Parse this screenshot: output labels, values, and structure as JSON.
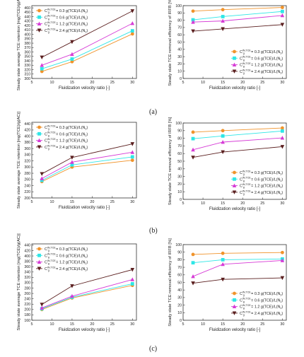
{
  "figure": {
    "panel_labels": [
      "(a)",
      "(b)",
      "(c)"
    ]
  },
  "legend": {
    "prefix": "C",
    "sup": "IN,TCE",
    "sub": "g",
    "entries": [
      " = 0.3 g(TCE)/L(N",
      " = 0.6 g(TCE)/L(N",
      " = 1.2 g(TCE)/L(N",
      " = 2.4 g(TCE)/L(N"
    ],
    "n_sub": "2",
    "close": ")"
  },
  "colors": {
    "s1": "#f0932b",
    "s2": "#2ee6e6",
    "s3": "#d63ad6",
    "s4": "#5a1e1e"
  },
  "chart_data": [
    {
      "type": "line",
      "panel": "(a)",
      "side": "left",
      "xlabel": "Fluidization velocity ratio [-]",
      "ylabel": "Steady state average TCE retention [mg(TCE)/g(AC)]",
      "x": [
        7.5,
        15,
        30
      ],
      "xticks": [
        5,
        10,
        15,
        20,
        25,
        30
      ],
      "xlim": [
        5,
        31
      ],
      "ylim": [
        300,
        465
      ],
      "yticks": [
        300,
        310,
        320,
        330,
        340,
        350,
        360,
        370,
        380,
        390,
        400,
        410,
        420,
        430,
        440,
        450,
        460
      ],
      "legend_position": "top-left",
      "series": [
        {
          "values": [
            316,
            338,
            401
          ]
        },
        {
          "values": [
            322,
            344,
            408
          ]
        },
        {
          "values": [
            330,
            355,
            425
          ]
        },
        {
          "values": [
            348,
            383,
            453
          ]
        }
      ]
    },
    {
      "type": "line",
      "panel": "(a)",
      "side": "right",
      "xlabel": "Fluidization velocity ratio [-]",
      "ylabel": "Steady state TCE removal efficiency of IRFB [%]",
      "x": [
        7.5,
        15,
        30
      ],
      "xticks": [
        5,
        10,
        15,
        20,
        25,
        30
      ],
      "xlim": [
        5,
        31
      ],
      "ylim": [
        0,
        100
      ],
      "yticks": [
        0,
        10,
        20,
        30,
        40,
        50,
        60,
        70,
        80,
        90,
        100
      ],
      "legend_position": "bottom-right",
      "series": [
        {
          "values": [
            92.5,
            94.5,
            97.5
          ]
        },
        {
          "values": [
            80.5,
            85,
            92
          ]
        },
        {
          "values": [
            77.5,
            79,
            86.5
          ]
        },
        {
          "values": [
            65,
            68,
            74
          ]
        }
      ]
    },
    {
      "type": "line",
      "panel": "(b)",
      "side": "left",
      "xlabel": "Fluidization velocity ratio [-]",
      "ylabel": "Steady state average TCE retention [mg(TCE)/g(AC)]",
      "x": [
        7.5,
        15,
        30
      ],
      "xticks": [
        5,
        10,
        15,
        20,
        25,
        30
      ],
      "xlim": [
        5,
        31
      ],
      "ylim": [
        200,
        445
      ],
      "yticks": [
        200,
        220,
        240,
        260,
        280,
        300,
        320,
        340,
        360,
        380,
        400,
        420,
        440
      ],
      "legend_position": "top-left",
      "series": [
        {
          "values": [
            253,
            300,
            322
          ]
        },
        {
          "values": [
            257,
            307,
            333
          ]
        },
        {
          "values": [
            263,
            316,
            348
          ]
        },
        {
          "values": [
            278,
            331,
            375
          ]
        }
      ]
    },
    {
      "type": "line",
      "panel": "(b)",
      "side": "right",
      "xlabel": "Fluidization velocity ratio [-]",
      "ylabel": "Steady state TCE removal efficiency of IRFB [%]",
      "x": [
        7.5,
        15,
        30
      ],
      "xticks": [
        5,
        10,
        15,
        20,
        25,
        30
      ],
      "xlim": [
        5,
        31
      ],
      "ylim": [
        0,
        100
      ],
      "yticks": [
        0,
        10,
        20,
        30,
        40,
        50,
        60,
        70,
        80,
        90,
        100
      ],
      "legend_position": "bottom-right",
      "series": [
        {
          "values": [
            88,
            90,
            93.5
          ]
        },
        {
          "values": [
            79.5,
            83,
            89.5
          ]
        },
        {
          "values": [
            65,
            75,
            80.5
          ]
        },
        {
          "values": [
            55,
            62,
            69
          ]
        }
      ]
    },
    {
      "type": "line",
      "panel": "(c)",
      "side": "left",
      "xlabel": "Fluidization velocity ratio [-]",
      "ylabel": "Steady state average TCE retention [mg(TCE)/g(AC)]",
      "x": [
        7.5,
        15,
        30
      ],
      "xticks": [
        5,
        10,
        15,
        20,
        25,
        30
      ],
      "xlim": [
        5,
        31
      ],
      "ylim": [
        160,
        445
      ],
      "yticks": [
        160,
        180,
        200,
        220,
        240,
        260,
        280,
        300,
        320,
        340,
        360,
        380,
        400,
        420,
        440
      ],
      "legend_position": "top-left",
      "series": [
        {
          "values": [
            200,
            243,
            290
          ]
        },
        {
          "values": [
            203,
            246,
            296
          ]
        },
        {
          "values": [
            206,
            250,
            312
          ]
        },
        {
          "values": [
            219,
            288,
            349
          ]
        }
      ]
    },
    {
      "type": "line",
      "panel": "(c)",
      "side": "right",
      "xlabel": "Fluidization velocity ratio [-]",
      "ylabel": "Steady state TCE removal efficiency of IRFB [%]",
      "x": [
        7.5,
        15,
        30
      ],
      "xticks": [
        5,
        10,
        15,
        20,
        25,
        30
      ],
      "xlim": [
        5,
        31
      ],
      "ylim": [
        0,
        100
      ],
      "yticks": [
        0,
        10,
        20,
        30,
        40,
        50,
        60,
        70,
        80,
        90,
        100
      ],
      "legend_position": "bottom-right",
      "series": [
        {
          "values": [
            87,
            88.5,
            89.5
          ]
        },
        {
          "values": [
            76,
            80,
            81
          ]
        },
        {
          "values": [
            58,
            74,
            79
          ]
        },
        {
          "values": [
            49,
            54,
            56
          ]
        }
      ]
    }
  ]
}
